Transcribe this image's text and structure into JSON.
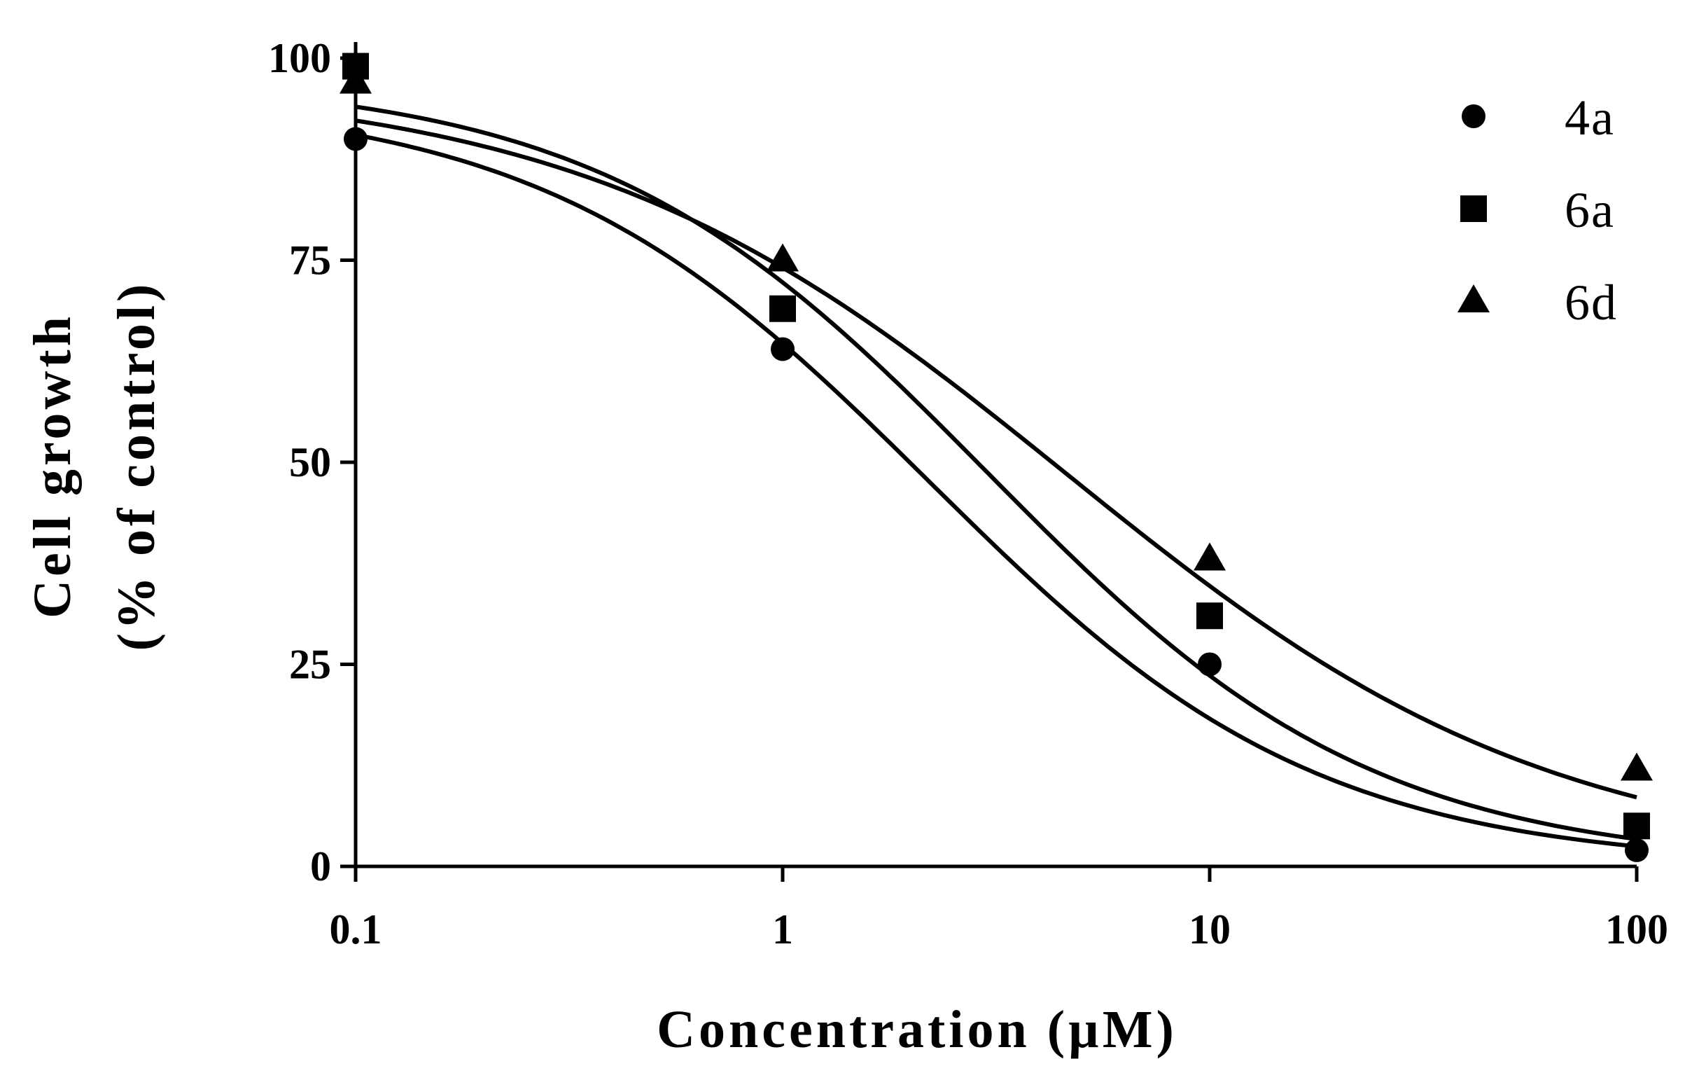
{
  "chart_data": {
    "type": "scatter",
    "title": "",
    "xlabel": "Concentration (µM)",
    "ylabel_lines": [
      "Cell growth",
      "(% of control)"
    ],
    "x_scale": "log",
    "xlim": [
      0.1,
      100
    ],
    "ylim": [
      0,
      100
    ],
    "x_ticks": [
      0.1,
      1,
      10,
      100
    ],
    "x_tick_labels": [
      "0.1",
      "1",
      "10",
      "100"
    ],
    "y_ticks": [
      0,
      25,
      50,
      75,
      100
    ],
    "y_tick_labels": [
      "0",
      "25",
      "50",
      "75",
      "100"
    ],
    "grid": false,
    "legend_position": "top-right",
    "x": [
      0.1,
      1,
      10,
      100
    ],
    "series": [
      {
        "name": "4a",
        "marker": "circle",
        "color": "#000000",
        "values": [
          90,
          64,
          25,
          2
        ],
        "fit": {
          "top": 95.3,
          "bottom": 0,
          "ec50": 2.2,
          "hill": 0.95
        }
      },
      {
        "name": "6a",
        "marker": "square",
        "color": "#000000",
        "values": [
          99,
          69,
          31,
          5
        ],
        "fit": {
          "top": 97.7,
          "bottom": 0,
          "ec50": 3.0,
          "hill": 0.95
        }
      },
      {
        "name": "6d",
        "marker": "triangle",
        "color": "#000000",
        "values": [
          97,
          75,
          38,
          12
        ],
        "fit": {
          "top": 97.3,
          "bottom": 0,
          "ec50": 4.6,
          "hill": 0.76
        }
      }
    ]
  }
}
